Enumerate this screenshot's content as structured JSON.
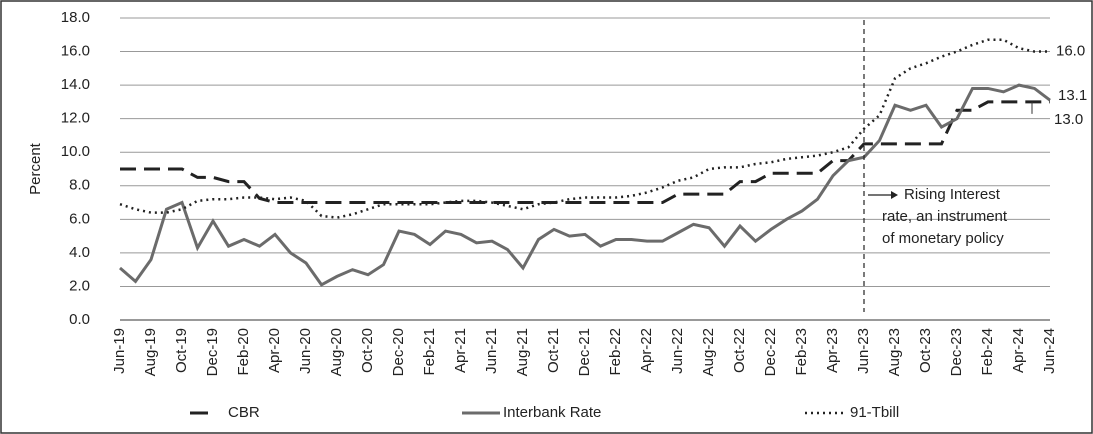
{
  "chart_data": {
    "type": "line",
    "y_label": "Percent",
    "ylim": [
      0,
      18
    ],
    "yticks": [
      {
        "value": 0,
        "label": "0.0"
      },
      {
        "value": 2,
        "label": "2.0"
      },
      {
        "value": 4,
        "label": "4.0"
      },
      {
        "value": 6,
        "label": "6.0"
      },
      {
        "value": 8,
        "label": "8.0"
      },
      {
        "value": 10,
        "label": "10.0"
      },
      {
        "value": 12,
        "label": "12.0"
      },
      {
        "value": 14,
        "label": "14.0"
      },
      {
        "value": 16,
        "label": "16.0"
      },
      {
        "value": 18,
        "label": "18.0"
      }
    ],
    "grid": true,
    "legend": "bottom",
    "categories": [
      "Jun-19",
      null,
      "Aug-19",
      null,
      "Oct-19",
      null,
      "Dec-19",
      null,
      "Feb-20",
      null,
      "Apr-20",
      null,
      "Jun-20",
      null,
      "Aug-20",
      null,
      "Oct-20",
      null,
      "Dec-20",
      null,
      "Feb-21",
      null,
      "Apr-21",
      null,
      "Jun-21",
      null,
      "Aug-21",
      null,
      "Oct-21",
      null,
      "Dec-21",
      null,
      "Feb-22",
      null,
      "Apr-22",
      null,
      "Jun-22",
      null,
      "Aug-22",
      null,
      "Oct-22",
      null,
      "Dec-22",
      null,
      "Feb-23",
      null,
      "Apr-23",
      null,
      "Jun-23",
      null,
      "Aug-23",
      null,
      "Oct-23",
      null,
      "Dec-23",
      null,
      "Feb-24",
      null,
      "Apr-24",
      null,
      "Jun-24"
    ],
    "series": [
      {
        "name": "CBR",
        "color": "#222222",
        "dash": "dashed",
        "end_label": "13.0",
        "values": [
          9.0,
          9.0,
          9.0,
          9.0,
          9.0,
          8.5,
          8.5,
          8.25,
          8.25,
          7.25,
          7.0,
          7.0,
          7.0,
          7.0,
          7.0,
          7.0,
          7.0,
          7.0,
          7.0,
          7.0,
          7.0,
          7.0,
          7.0,
          7.0,
          7.0,
          7.0,
          7.0,
          7.0,
          7.0,
          7.0,
          7.0,
          7.0,
          7.0,
          7.0,
          7.0,
          7.0,
          7.5,
          7.5,
          7.5,
          7.5,
          8.25,
          8.25,
          8.75,
          8.75,
          8.75,
          8.75,
          9.5,
          9.5,
          10.5,
          10.5,
          10.5,
          10.5,
          10.5,
          10.5,
          12.5,
          12.5,
          13.0,
          13.0,
          13.0,
          13.0,
          13.0
        ]
      },
      {
        "name": "Interbank Rate",
        "color": "#6b6b6b",
        "dash": "solid",
        "end_label": "13.1",
        "values": [
          3.1,
          2.3,
          3.6,
          6.6,
          7.0,
          4.3,
          5.9,
          4.4,
          4.8,
          4.4,
          5.1,
          4.0,
          3.4,
          2.1,
          2.6,
          3.0,
          2.7,
          3.3,
          5.3,
          5.1,
          4.5,
          5.3,
          5.1,
          4.6,
          4.7,
          4.2,
          3.1,
          4.8,
          5.4,
          5.0,
          5.1,
          4.4,
          4.8,
          4.8,
          4.7,
          4.7,
          5.2,
          5.7,
          5.5,
          4.4,
          5.6,
          4.7,
          5.4,
          6.0,
          6.5,
          7.2,
          8.6,
          9.5,
          9.7,
          10.7,
          12.8,
          12.5,
          12.8,
          11.5,
          12.0,
          13.8,
          13.8,
          13.6,
          14.0,
          13.8,
          13.1
        ]
      },
      {
        "name": "91-Tbill",
        "color": "#222222",
        "dash": "dotted",
        "end_label": "16.0",
        "values": [
          6.9,
          6.6,
          6.4,
          6.4,
          6.6,
          7.1,
          7.2,
          7.2,
          7.3,
          7.3,
          7.2,
          7.3,
          7.1,
          6.2,
          6.1,
          6.3,
          6.6,
          6.9,
          6.9,
          6.9,
          6.9,
          7.0,
          7.1,
          7.1,
          7.0,
          6.8,
          6.6,
          6.9,
          7.0,
          7.2,
          7.3,
          7.3,
          7.3,
          7.4,
          7.6,
          7.9,
          8.3,
          8.5,
          9.0,
          9.1,
          9.1,
          9.3,
          9.4,
          9.6,
          9.7,
          9.8,
          10.0,
          10.3,
          11.4,
          12.2,
          14.4,
          15.0,
          15.3,
          15.7,
          16.0,
          16.4,
          16.7,
          16.7,
          16.2,
          16.0,
          16.0
        ]
      }
    ],
    "annotation": {
      "at": "Jun-23",
      "lines": [
        "Rising Interest",
        "rate, an instrument",
        "of monetary policy"
      ]
    }
  }
}
